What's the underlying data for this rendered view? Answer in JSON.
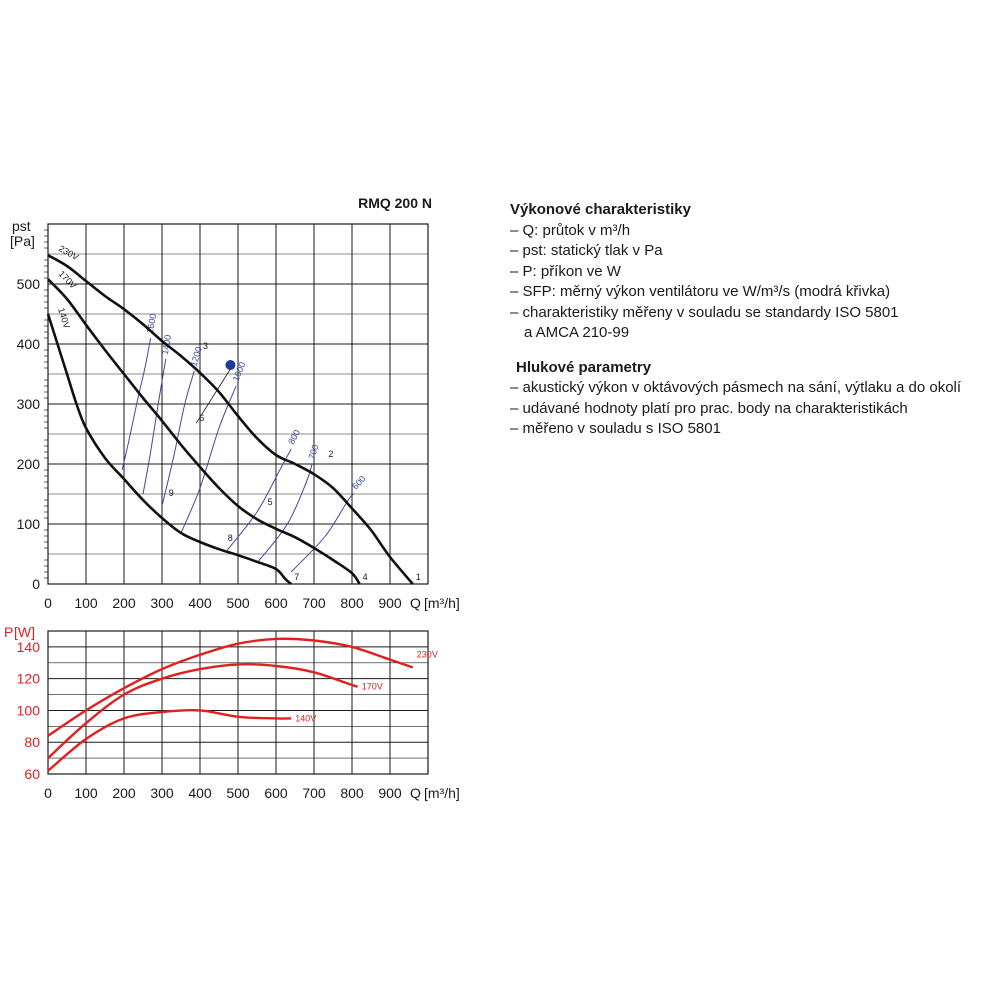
{
  "chart_data": [
    {
      "type": "line",
      "title": "RMQ 200 N",
      "ylabel_top": "pst",
      "ylabel_unit": "[Pa]",
      "xlabel": "Q",
      "xlabel_unit": "[m³/h]",
      "xlim": [
        0,
        1000
      ],
      "ylim": [
        0,
        600
      ],
      "x_ticks": [
        "0",
        "100",
        "200",
        "300",
        "400",
        "500",
        "600",
        "700",
        "800",
        "900"
      ],
      "y_ticks": [
        "0",
        "100",
        "200",
        "300",
        "400",
        "500"
      ],
      "grid": true,
      "series": [
        {
          "name": "230V",
          "role": "fan-curve",
          "points": [
            [
              0,
              548
            ],
            [
              50,
              530
            ],
            [
              100,
              505
            ],
            [
              150,
              480
            ],
            [
              200,
              458
            ],
            [
              250,
              433
            ],
            [
              300,
              405
            ],
            [
              350,
              380
            ],
            [
              400,
              352
            ],
            [
              450,
              320
            ],
            [
              500,
              280
            ],
            [
              550,
              243
            ],
            [
              600,
              215
            ],
            [
              650,
              200
            ],
            [
              700,
              183
            ],
            [
              750,
              160
            ],
            [
              800,
              126
            ],
            [
              850,
              90
            ],
            [
              900,
              45
            ],
            [
              960,
              0
            ]
          ]
        },
        {
          "name": "170V",
          "role": "fan-curve",
          "points": [
            [
              0,
              508
            ],
            [
              50,
              475
            ],
            [
              100,
              432
            ],
            [
              150,
              390
            ],
            [
              200,
              350
            ],
            [
              250,
              310
            ],
            [
              300,
              272
            ],
            [
              350,
              232
            ],
            [
              400,
              195
            ],
            [
              450,
              160
            ],
            [
              500,
              130
            ],
            [
              550,
              108
            ],
            [
              600,
              92
            ],
            [
              650,
              78
            ],
            [
              700,
              60
            ],
            [
              750,
              40
            ],
            [
              800,
              18
            ],
            [
              820,
              0
            ]
          ]
        },
        {
          "name": "140V",
          "role": "fan-curve",
          "points": [
            [
              0,
              450
            ],
            [
              25,
              400
            ],
            [
              50,
              350
            ],
            [
              75,
              300
            ],
            [
              100,
              260
            ],
            [
              150,
              210
            ],
            [
              200,
              175
            ],
            [
              250,
              140
            ],
            [
              300,
              110
            ],
            [
              350,
              85
            ],
            [
              400,
              70
            ],
            [
              450,
              58
            ],
            [
              500,
              48
            ],
            [
              550,
              37
            ],
            [
              600,
              25
            ],
            [
              625,
              8
            ],
            [
              640,
              0
            ]
          ]
        },
        {
          "name": "1600",
          "role": "sfp",
          "points": [
            [
              195,
              190
            ],
            [
              215,
              245
            ],
            [
              235,
              305
            ],
            [
              255,
              360
            ],
            [
              270,
              410
            ]
          ]
        },
        {
          "name": "1400",
          "role": "sfp",
          "points": [
            [
              250,
              150
            ],
            [
              270,
              220
            ],
            [
              290,
              300
            ],
            [
              310,
              375
            ]
          ]
        },
        {
          "name": "1200",
          "role": "sfp",
          "points": [
            [
              300,
              130
            ],
            [
              330,
              210
            ],
            [
              360,
              300
            ],
            [
              385,
              355
            ]
          ]
        },
        {
          "name": "1000",
          "role": "sfp",
          "points": [
            [
              350,
              85
            ],
            [
              400,
              160
            ],
            [
              450,
              260
            ],
            [
              495,
              330
            ]
          ]
        },
        {
          "name": "800",
          "role": "sfp",
          "points": [
            [
              470,
              55
            ],
            [
              550,
              120
            ],
            [
              610,
              190
            ],
            [
              640,
              225
            ]
          ]
        },
        {
          "name": "700",
          "role": "sfp",
          "points": [
            [
              550,
              35
            ],
            [
              630,
              100
            ],
            [
              680,
              170
            ],
            [
              695,
              200
            ]
          ]
        },
        {
          "name": "600",
          "role": "sfp",
          "points": [
            [
              640,
              20
            ],
            [
              730,
              80
            ],
            [
              790,
              140
            ],
            [
              805,
              150
            ]
          ]
        }
      ],
      "sfp_labels": [
        "1600",
        "1400",
        "1200",
        "1000",
        "800",
        "700",
        "600"
      ],
      "operating_points": [
        {
          "label": "1",
          "x": 960,
          "y": 0
        },
        {
          "label": "2",
          "x": 730,
          "y": 205
        },
        {
          "label": "3",
          "x": 400,
          "y": 385
        },
        {
          "label": "4",
          "x": 820,
          "y": 0
        },
        {
          "label": "5",
          "x": 570,
          "y": 125
        },
        {
          "label": "6",
          "x": 390,
          "y": 265
        },
        {
          "label": "7",
          "x": 640,
          "y": 0
        },
        {
          "label": "8",
          "x": 465,
          "y": 65
        },
        {
          "label": "9",
          "x": 310,
          "y": 140
        }
      ],
      "marker": {
        "x": 480,
        "y": 365,
        "color": "#1f3b9a"
      }
    },
    {
      "type": "line",
      "ylabel": "P",
      "ylabel_unit": "[W]",
      "xlabel": "Q",
      "xlabel_unit": "[m³/h]",
      "xlim": [
        0,
        1000
      ],
      "ylim": [
        60,
        150
      ],
      "x_ticks": [
        "0",
        "100",
        "200",
        "300",
        "400",
        "500",
        "600",
        "700",
        "800",
        "900"
      ],
      "y_ticks": [
        "60",
        "80",
        "100",
        "120",
        "140"
      ],
      "grid": true,
      "series": [
        {
          "name": "230V",
          "points": [
            [
              0,
              84
            ],
            [
              100,
              100
            ],
            [
              200,
              114
            ],
            [
              300,
              126
            ],
            [
              400,
              135
            ],
            [
              500,
              142
            ],
            [
              600,
              145
            ],
            [
              700,
              144
            ],
            [
              800,
              140
            ],
            [
              900,
              132
            ],
            [
              960,
              127
            ]
          ]
        },
        {
          "name": "170V",
          "points": [
            [
              0,
              70
            ],
            [
              100,
              92
            ],
            [
              200,
              110
            ],
            [
              300,
              120
            ],
            [
              400,
              126
            ],
            [
              500,
              129
            ],
            [
              600,
              128
            ],
            [
              700,
              124
            ],
            [
              800,
              116
            ],
            [
              815,
              115
            ]
          ]
        },
        {
          "name": "140V",
          "points": [
            [
              0,
              62
            ],
            [
              100,
              82
            ],
            [
              200,
              95
            ],
            [
              300,
              99
            ],
            [
              400,
              100
            ],
            [
              500,
              96
            ],
            [
              600,
              95
            ],
            [
              640,
              95
            ]
          ]
        }
      ]
    }
  ],
  "colors": {
    "fan_curve": "#111111",
    "sfp_curve": "#3b4aa0",
    "power_curve": "#e02020",
    "grid": "#1a1a1a",
    "marker": "#1f3b9a"
  },
  "legend_panel": {
    "heading1": "Výkonové charakteristiky",
    "items1": [
      "– Q: průtok v m³/h",
      "– pst: statický tlak v Pa",
      "– P: příkon ve W",
      "– SFP: měrný výkon ventilátoru ve W/m³/s (modrá křivka)",
      "– charakteristiky měřeny v souladu se standardy ISO 5801",
      "   a AMCA 210-99"
    ],
    "heading2": "Hlukové parametry",
    "items2": [
      "– akustický výkon v oktávových pásmech na sání, výtlaku a do okolí",
      "– udávané hodnoty platí pro prac. body na charakteristikách",
      "– měřeno v souladu s ISO 5801"
    ]
  }
}
